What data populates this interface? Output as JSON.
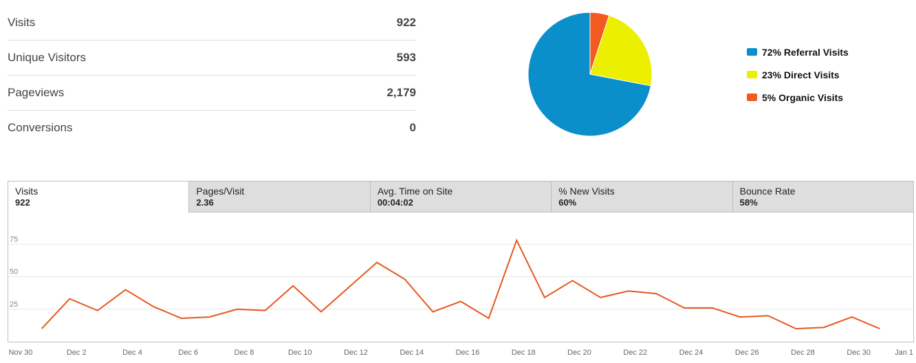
{
  "stats": [
    {
      "label": "Visits",
      "value": "922"
    },
    {
      "label": "Unique Visitors",
      "value": "593"
    },
    {
      "label": "Pageviews",
      "value": "2,179"
    },
    {
      "label": "Conversions",
      "value": "0"
    }
  ],
  "pie": {
    "slices": [
      {
        "label": "72% Referral Visits",
        "percent": 72,
        "color": "#0a8fcb"
      },
      {
        "label": "23% Direct Visits",
        "percent": 23,
        "color": "#ecef00"
      },
      {
        "label": "5% Organic Visits",
        "percent": 5,
        "color": "#f25a1f"
      }
    ]
  },
  "tabs": [
    {
      "label": "Visits",
      "value": "922",
      "active": true
    },
    {
      "label": "Pages/Visit",
      "value": "2.36",
      "active": false
    },
    {
      "label": "Avg. Time on Site",
      "value": "00:04:02",
      "active": false
    },
    {
      "label": "% New Visits",
      "value": "60%",
      "active": false
    },
    {
      "label": "Bounce Rate",
      "value": "58%",
      "active": false
    }
  ],
  "chart_data": {
    "type": "line",
    "series": [
      {
        "name": "Visits",
        "color": "#e8561c",
        "values": [
          10,
          33,
          24,
          40,
          27,
          18,
          19,
          25,
          24,
          43,
          23,
          42,
          61,
          48,
          23,
          31,
          18,
          78,
          34,
          47,
          34,
          39,
          37,
          26,
          26,
          19,
          20,
          10,
          11,
          19,
          10
        ]
      }
    ],
    "x_start_day": 1,
    "x_tick_labels": [
      "Nov 30",
      "Dec 2",
      "Dec 4",
      "Dec 6",
      "Dec 8",
      "Dec 10",
      "Dec 12",
      "Dec 14",
      "Dec 16",
      "Dec 18",
      "Dec 20",
      "Dec 22",
      "Dec 24",
      "Dec 26",
      "Dec 28",
      "Dec 30",
      "Jan 1"
    ],
    "x_tick_days": [
      0,
      2,
      4,
      6,
      8,
      10,
      12,
      14,
      16,
      18,
      20,
      22,
      24,
      26,
      28,
      30,
      32
    ],
    "y_ticks": [
      25,
      50,
      75
    ],
    "ylim": [
      0,
      100
    ],
    "grid": true
  }
}
